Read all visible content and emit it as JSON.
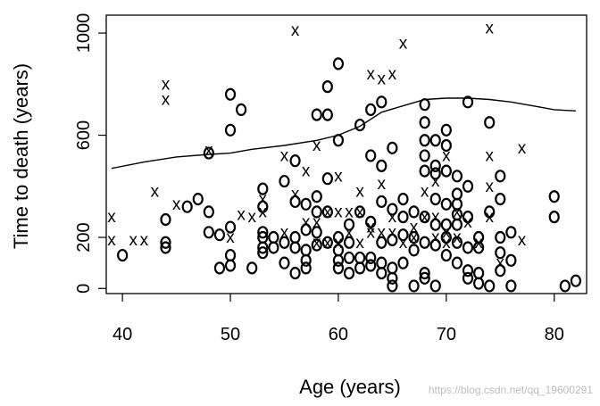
{
  "chart_data": {
    "type": "scatter",
    "title": "",
    "xlabel": "Age (years)",
    "ylabel": "Time to death (years)",
    "xlim": [
      38.5,
      83
    ],
    "ylim": [
      -20,
      1070
    ],
    "x_ticks": [
      40,
      50,
      60,
      70,
      80
    ],
    "y_ticks": [
      0,
      200,
      600,
      1000
    ],
    "grid": false,
    "legend": "none",
    "markers": {
      "censored": "x",
      "event": "o"
    },
    "series": [
      {
        "marker": "x",
        "points": [
          [
            39,
            280
          ],
          [
            39,
            190
          ],
          [
            41,
            190
          ],
          [
            42,
            190
          ],
          [
            43,
            380
          ],
          [
            44,
            800
          ],
          [
            44,
            740
          ],
          [
            45,
            330
          ],
          [
            48,
            540
          ],
          [
            50,
            200
          ],
          [
            51,
            290
          ],
          [
            52,
            280
          ],
          [
            53,
            300
          ],
          [
            53,
            350
          ],
          [
            55,
            220
          ],
          [
            55,
            520
          ],
          [
            56,
            1010
          ],
          [
            56,
            370
          ],
          [
            57,
            460
          ],
          [
            57,
            260
          ],
          [
            58,
            560
          ],
          [
            58,
            260
          ],
          [
            58,
            180
          ],
          [
            59,
            300
          ],
          [
            59,
            180
          ],
          [
            60,
            440
          ],
          [
            60,
            300
          ],
          [
            60,
            180
          ],
          [
            61,
            300
          ],
          [
            61,
            220
          ],
          [
            62,
            380
          ],
          [
            62,
            300
          ],
          [
            62,
            180
          ],
          [
            63,
            840
          ],
          [
            63,
            240
          ],
          [
            63,
            220
          ],
          [
            64,
            820
          ],
          [
            64,
            410
          ],
          [
            64,
            220
          ],
          [
            65,
            840
          ],
          [
            65,
            280
          ],
          [
            65,
            220
          ],
          [
            66,
            960
          ],
          [
            66,
            180
          ],
          [
            67,
            240
          ],
          [
            67,
            200
          ],
          [
            68,
            380
          ],
          [
            68,
            280
          ],
          [
            69,
            420
          ],
          [
            69,
            280
          ],
          [
            69,
            200
          ],
          [
            70,
            520
          ],
          [
            70,
            220
          ],
          [
            70,
            180
          ],
          [
            71,
            300
          ],
          [
            71,
            200
          ],
          [
            72,
            260
          ],
          [
            73,
            180
          ],
          [
            74,
            1020
          ],
          [
            74,
            520
          ],
          [
            74,
            400
          ],
          [
            74,
            280
          ],
          [
            75,
            100
          ],
          [
            77,
            550
          ],
          [
            77,
            190
          ]
        ]
      },
      {
        "marker": "o",
        "points": [
          [
            40,
            130
          ],
          [
            44,
            270
          ],
          [
            44,
            180
          ],
          [
            44,
            160
          ],
          [
            46,
            320
          ],
          [
            47,
            350
          ],
          [
            48,
            530
          ],
          [
            48,
            300
          ],
          [
            48,
            220
          ],
          [
            49,
            210
          ],
          [
            49,
            80
          ],
          [
            50,
            760
          ],
          [
            50,
            620
          ],
          [
            50,
            240
          ],
          [
            50,
            130
          ],
          [
            50,
            90
          ],
          [
            51,
            700
          ],
          [
            52,
            80
          ],
          [
            53,
            390
          ],
          [
            53,
            320
          ],
          [
            53,
            220
          ],
          [
            53,
            200
          ],
          [
            53,
            160
          ],
          [
            53,
            140
          ],
          [
            54,
            200
          ],
          [
            54,
            160
          ],
          [
            55,
            420
          ],
          [
            55,
            180
          ],
          [
            55,
            100
          ],
          [
            56,
            500
          ],
          [
            56,
            340
          ],
          [
            56,
            200
          ],
          [
            56,
            160
          ],
          [
            56,
            60
          ],
          [
            57,
            330
          ],
          [
            57,
            230
          ],
          [
            57,
            150
          ],
          [
            57,
            110
          ],
          [
            57,
            80
          ],
          [
            58,
            680
          ],
          [
            58,
            360
          ],
          [
            58,
            300
          ],
          [
            58,
            220
          ],
          [
            58,
            170
          ],
          [
            59,
            790
          ],
          [
            59,
            680
          ],
          [
            59,
            430
          ],
          [
            59,
            300
          ],
          [
            59,
            180
          ],
          [
            60,
            880
          ],
          [
            60,
            580
          ],
          [
            60,
            200
          ],
          [
            60,
            150
          ],
          [
            60,
            110
          ],
          [
            60,
            80
          ],
          [
            61,
            250
          ],
          [
            61,
            180
          ],
          [
            61,
            120
          ],
          [
            61,
            60
          ],
          [
            62,
            640
          ],
          [
            62,
            300
          ],
          [
            62,
            120
          ],
          [
            62,
            80
          ],
          [
            63,
            700
          ],
          [
            63,
            520
          ],
          [
            63,
            260
          ],
          [
            63,
            120
          ],
          [
            63,
            90
          ],
          [
            64,
            730
          ],
          [
            64,
            480
          ],
          [
            64,
            340
          ],
          [
            64,
            180
          ],
          [
            64,
            100
          ],
          [
            64,
            60
          ],
          [
            65,
            550
          ],
          [
            65,
            310
          ],
          [
            65,
            190
          ],
          [
            65,
            80
          ],
          [
            65,
            40
          ],
          [
            65,
            10
          ],
          [
            66,
            350
          ],
          [
            66,
            280
          ],
          [
            66,
            210
          ],
          [
            66,
            100
          ],
          [
            67,
            300
          ],
          [
            67,
            200
          ],
          [
            67,
            150
          ],
          [
            67,
            10
          ],
          [
            68,
            720
          ],
          [
            68,
            650
          ],
          [
            68,
            580
          ],
          [
            68,
            520
          ],
          [
            68,
            460
          ],
          [
            68,
            280
          ],
          [
            68,
            180
          ],
          [
            68,
            60
          ],
          [
            68,
            40
          ],
          [
            69,
            580
          ],
          [
            69,
            480
          ],
          [
            69,
            450
          ],
          [
            69,
            350
          ],
          [
            69,
            250
          ],
          [
            69,
            170
          ],
          [
            69,
            10
          ],
          [
            70,
            620
          ],
          [
            70,
            560
          ],
          [
            70,
            460
          ],
          [
            70,
            330
          ],
          [
            70,
            250
          ],
          [
            70,
            200
          ],
          [
            70,
            130
          ],
          [
            71,
            440
          ],
          [
            71,
            370
          ],
          [
            71,
            330
          ],
          [
            71,
            290
          ],
          [
            71,
            250
          ],
          [
            71,
            180
          ],
          [
            71,
            100
          ],
          [
            72,
            730
          ],
          [
            72,
            400
          ],
          [
            72,
            280
          ],
          [
            72,
            160
          ],
          [
            72,
            70
          ],
          [
            72,
            40
          ],
          [
            73,
            200
          ],
          [
            73,
            160
          ],
          [
            73,
            60
          ],
          [
            73,
            20
          ],
          [
            74,
            650
          ],
          [
            74,
            300
          ],
          [
            74,
            10
          ],
          [
            75,
            440
          ],
          [
            75,
            350
          ],
          [
            75,
            200
          ],
          [
            75,
            140
          ],
          [
            75,
            70
          ],
          [
            76,
            220
          ],
          [
            76,
            110
          ],
          [
            76,
            10
          ],
          [
            80,
            360
          ],
          [
            80,
            280
          ],
          [
            81,
            10
          ],
          [
            82,
            30
          ]
        ]
      }
    ],
    "curve": [
      [
        39,
        470
      ],
      [
        42,
        495
      ],
      [
        45,
        515
      ],
      [
        48,
        525
      ],
      [
        50,
        530
      ],
      [
        52,
        545
      ],
      [
        55,
        560
      ],
      [
        58,
        580
      ],
      [
        60,
        600
      ],
      [
        62,
        635
      ],
      [
        64,
        690
      ],
      [
        66,
        715
      ],
      [
        68,
        740
      ],
      [
        70,
        745
      ],
      [
        72,
        745
      ],
      [
        74,
        740
      ],
      [
        76,
        730
      ],
      [
        78,
        715
      ],
      [
        80,
        700
      ],
      [
        82,
        695
      ]
    ]
  },
  "watermark": "https://blog.csdn.net/qq_19600291"
}
